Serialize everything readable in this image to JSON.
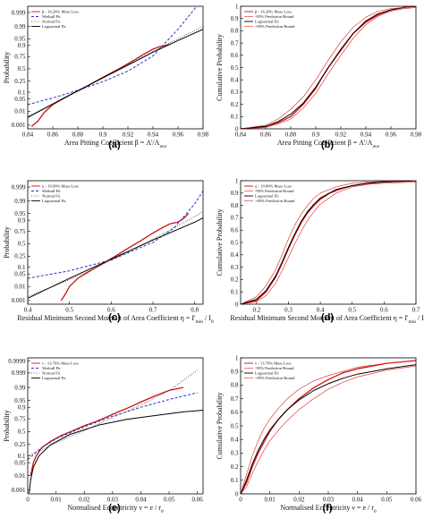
{
  "colors": {
    "data": "#cc1111",
    "weibull": "#2233cc",
    "normal": "#444444",
    "lognormal": "#000000",
    "bound": "#e02020",
    "cdf_main": "#222222"
  },
  "chart_data": [
    {
      "id": "a",
      "type": "line",
      "panel_label": "(a)",
      "xlabel": "Area Pitting Coefficient β = A'/A",
      "xlabel_sub": "ave",
      "ylabel": "Probability",
      "xlim": [
        0.84,
        0.98
      ],
      "xticks": [
        "0.84",
        "0.86",
        "0.88",
        "0.9",
        "0.92",
        "0.94",
        "0.96",
        "0.98"
      ],
      "yticks": [
        "0.001",
        "0.01",
        "0.05",
        "0.1",
        "0.25",
        "0.5",
        "0.75",
        "0.9",
        "0.95",
        "0.99",
        "0.999"
      ],
      "ylim_prob": [
        0.0005,
        0.9997
      ],
      "legend_position": "top-left",
      "legend": [
        "β - 16.26% Mass Loss",
        "Weibull Fit",
        "Normal Fit",
        "Lognormal Fit"
      ],
      "series": [
        {
          "name": "β - 16.26% Mass Loss",
          "style": "data",
          "x": [
            0.843,
            0.848,
            0.853,
            0.86,
            0.868,
            0.876,
            0.884,
            0.892,
            0.9,
            0.908,
            0.916,
            0.924,
            0.932,
            0.94,
            0.946,
            0.95,
            0.953
          ],
          "y": [
            0.0008,
            0.002,
            0.008,
            0.025,
            0.05,
            0.09,
            0.14,
            0.22,
            0.32,
            0.43,
            0.55,
            0.67,
            0.78,
            0.86,
            0.89,
            0.9,
            0.91
          ]
        },
        {
          "name": "Weibull Fit",
          "style": "weibull",
          "x": [
            0.84,
            0.86,
            0.88,
            0.9,
            0.92,
            0.94,
            0.96,
            0.975
          ],
          "y": [
            0.025,
            0.055,
            0.12,
            0.24,
            0.45,
            0.76,
            0.985,
            0.9997
          ]
        },
        {
          "name": "Normal Fit",
          "style": "normal",
          "x": [
            0.84,
            0.86,
            0.88,
            0.9,
            0.92,
            0.94,
            0.96,
            0.98
          ],
          "y": [
            0.0035,
            0.025,
            0.11,
            0.31,
            0.59,
            0.83,
            0.95,
            0.99
          ]
        },
        {
          "name": "Lognormal Fit",
          "style": "lognormal",
          "x": [
            0.84,
            0.86,
            0.88,
            0.9,
            0.92,
            0.94,
            0.96,
            0.98
          ],
          "y": [
            0.004,
            0.027,
            0.115,
            0.31,
            0.58,
            0.82,
            0.94,
            0.985
          ]
        }
      ]
    },
    {
      "id": "b",
      "type": "line",
      "panel_label": "(b)",
      "xlabel": "Area Pitting Coefficient β = A'/A",
      "xlabel_sub": "ave",
      "ylabel": "Cumulative Probability",
      "xlim": [
        0.84,
        0.98
      ],
      "xticks": [
        "0.84",
        "0.86",
        "0.88",
        "0.9",
        "0.92",
        "0.94",
        "0.96",
        "0.98"
      ],
      "ylim": [
        0,
        1
      ],
      "yticks": [
        "0",
        "0.1",
        "0.2",
        "0.3",
        "0.4",
        "0.5",
        "0.6",
        "0.7",
        "0.8",
        "0.9",
        "1"
      ],
      "legend_position": "top-left",
      "legend": [
        "β - 16.26% Mass Loss",
        "-95% Prediction Bound",
        "Lognormal Fit",
        "+95% Prediction Bound"
      ],
      "series": [
        {
          "name": "β - 16.26% Mass Loss",
          "style": "data",
          "x": [
            0.84,
            0.86,
            0.87,
            0.88,
            0.89,
            0.9,
            0.905,
            0.91,
            0.92,
            0.93,
            0.94,
            0.95,
            0.96,
            0.97,
            0.98
          ],
          "y": [
            0,
            0.02,
            0.05,
            0.1,
            0.2,
            0.33,
            0.42,
            0.5,
            0.64,
            0.78,
            0.87,
            0.93,
            0.97,
            0.99,
            1
          ]
        },
        {
          "name": "-95% Prediction Bound",
          "style": "bound",
          "x": [
            0.84,
            0.86,
            0.87,
            0.88,
            0.89,
            0.9,
            0.91,
            0.92,
            0.93,
            0.94,
            0.95,
            0.96,
            0.97,
            0.98
          ],
          "y": [
            0,
            0.01,
            0.04,
            0.08,
            0.17,
            0.29,
            0.45,
            0.6,
            0.74,
            0.85,
            0.92,
            0.96,
            0.98,
            0.99
          ]
        },
        {
          "name": "Lognormal Fit",
          "style": "lognormal",
          "x": [
            0.84,
            0.86,
            0.87,
            0.88,
            0.89,
            0.9,
            0.91,
            0.92,
            0.93,
            0.94,
            0.95,
            0.96,
            0.97,
            0.98
          ],
          "y": [
            0,
            0.02,
            0.06,
            0.12,
            0.21,
            0.34,
            0.5,
            0.65,
            0.78,
            0.88,
            0.94,
            0.97,
            0.99,
            1
          ]
        },
        {
          "name": "+95% Prediction Bound",
          "style": "bound",
          "x": [
            0.84,
            0.86,
            0.87,
            0.88,
            0.89,
            0.9,
            0.91,
            0.92,
            0.93,
            0.94,
            0.95,
            0.96,
            0.97,
            0.98
          ],
          "y": [
            0,
            0.03,
            0.08,
            0.16,
            0.26,
            0.4,
            0.56,
            0.71,
            0.83,
            0.91,
            0.96,
            0.98,
            0.99,
            1
          ]
        }
      ]
    },
    {
      "id": "c",
      "type": "line",
      "panel_label": "(c)",
      "xlabel": "Residual Minimum Second Moment of Area Coefficient η = I'",
      "xlabel_sub": "min",
      "xlabel_tail": " / I",
      "xlabel_sub2": "0",
      "ylabel": "Probability",
      "xlim": [
        0.4,
        0.82
      ],
      "xticks": [
        "0.4",
        "0.5",
        "0.6",
        "0.7",
        "0.8"
      ],
      "yticks": [
        "0.001",
        "0.01",
        "0.05",
        "0.1",
        "0.25",
        "0.5",
        "0.75",
        "0.9",
        "0.95",
        "0.99",
        "0.999"
      ],
      "ylim_prob": [
        0.0005,
        0.9997
      ],
      "legend_position": "top-left",
      "legend": [
        "η - 19.09% Mass Loss",
        "Weibull Fit",
        "Normal Fit",
        "Lognormal Fit"
      ],
      "series": [
        {
          "name": "η - 19.09% Mass Loss",
          "style": "data",
          "x": [
            0.48,
            0.49,
            0.5,
            0.52,
            0.55,
            0.58,
            0.61,
            0.64,
            0.67,
            0.7,
            0.72,
            0.74,
            0.76,
            0.775,
            0.785
          ],
          "y": [
            0.001,
            0.003,
            0.01,
            0.03,
            0.07,
            0.14,
            0.25,
            0.4,
            0.56,
            0.72,
            0.8,
            0.86,
            0.88,
            0.92,
            0.95
          ]
        },
        {
          "name": "Weibull Fit",
          "style": "weibull",
          "x": [
            0.4,
            0.5,
            0.6,
            0.7,
            0.75,
            0.8,
            0.82
          ],
          "y": [
            0.03,
            0.07,
            0.19,
            0.53,
            0.8,
            0.985,
            0.998
          ]
        },
        {
          "name": "Normal Fit",
          "style": "normal",
          "x": [
            0.4,
            0.5,
            0.6,
            0.7,
            0.8,
            0.82
          ],
          "y": [
            0.002,
            0.025,
            0.18,
            0.6,
            0.93,
            0.96
          ]
        },
        {
          "name": "Lognormal Fit",
          "style": "lognormal",
          "x": [
            0.4,
            0.5,
            0.6,
            0.7,
            0.8,
            0.82
          ],
          "y": [
            0.0015,
            0.03,
            0.2,
            0.58,
            0.88,
            0.92
          ]
        }
      ]
    },
    {
      "id": "d",
      "type": "line",
      "panel_label": "(d)",
      "xlabel": "Residual Minimum Second Moment of Area Coefficient η = I'",
      "xlabel_sub": "min",
      "xlabel_tail": " / I",
      "xlabel_sub2": "0",
      "ylabel": "Cumulative Probability",
      "xlim": [
        0.15,
        0.7
      ],
      "xticks": [
        "0.2",
        "0.3",
        "0.4",
        "0.5",
        "0.6",
        "0.7"
      ],
      "ylim": [
        0,
        1
      ],
      "yticks": [
        "0",
        "0.1",
        "0.2",
        "0.3",
        "0.4",
        "0.5",
        "0.6",
        "0.7",
        "0.8",
        "0.9",
        "1"
      ],
      "legend_position": "top-left",
      "legend": [
        "η - 19.09% Mass Loss",
        "-95% Prediction Bound",
        "Lognormal Fit",
        "+95% Prediction Bound"
      ],
      "series": [
        {
          "name": "η - 19.09% Mass Loss",
          "style": "data",
          "x": [
            0.15,
            0.2,
            0.23,
            0.26,
            0.28,
            0.3,
            0.32,
            0.34,
            0.36,
            0.38,
            0.4,
            0.43,
            0.46,
            0.5,
            0.55,
            0.6,
            0.65,
            0.7
          ],
          "y": [
            0,
            0.03,
            0.1,
            0.22,
            0.33,
            0.45,
            0.56,
            0.66,
            0.74,
            0.8,
            0.85,
            0.9,
            0.93,
            0.96,
            0.98,
            0.99,
            0.995,
            1
          ]
        },
        {
          "name": "-95% Prediction Bound",
          "style": "bound",
          "x": [
            0.15,
            0.2,
            0.23,
            0.26,
            0.28,
            0.3,
            0.32,
            0.34,
            0.36,
            0.38,
            0.4,
            0.45,
            0.5,
            0.55,
            0.6,
            0.7
          ],
          "y": [
            0,
            0.02,
            0.07,
            0.17,
            0.27,
            0.38,
            0.49,
            0.59,
            0.68,
            0.75,
            0.81,
            0.9,
            0.95,
            0.97,
            0.98,
            0.99
          ]
        },
        {
          "name": "Lognormal Fit",
          "style": "lognormal",
          "x": [
            0.15,
            0.2,
            0.23,
            0.26,
            0.28,
            0.3,
            0.32,
            0.34,
            0.36,
            0.38,
            0.4,
            0.45,
            0.5,
            0.55,
            0.6,
            0.7
          ],
          "y": [
            0,
            0.04,
            0.11,
            0.23,
            0.34,
            0.46,
            0.57,
            0.67,
            0.75,
            0.81,
            0.86,
            0.93,
            0.96,
            0.98,
            0.99,
            1
          ]
        },
        {
          "name": "+95% Prediction Bound",
          "style": "bound",
          "x": [
            0.15,
            0.2,
            0.23,
            0.26,
            0.28,
            0.3,
            0.32,
            0.34,
            0.36,
            0.38,
            0.4,
            0.45,
            0.5,
            0.55,
            0.6,
            0.7
          ],
          "y": [
            0,
            0.06,
            0.15,
            0.28,
            0.4,
            0.53,
            0.64,
            0.73,
            0.8,
            0.86,
            0.9,
            0.95,
            0.98,
            0.99,
            0.995,
            1
          ]
        }
      ]
    },
    {
      "id": "e",
      "type": "line",
      "panel_label": "(e)",
      "xlabel": "Normalised Eccentricity ν = e / r",
      "xlabel_sub": "0",
      "ylabel": "Probability",
      "xlim": [
        0,
        0.062
      ],
      "xticks": [
        "0",
        "0.01",
        "0.02",
        "0.03",
        "0.04",
        "0.05",
        "0.06"
      ],
      "yticks": [
        "0.001",
        "0.01",
        "0.05",
        "0.1",
        "0.25",
        "0.5",
        "0.75",
        "0.9",
        "0.95",
        "0.99",
        "0.999",
        "0.9999"
      ],
      "ylim_prob": [
        0.0005,
        0.99995
      ],
      "legend_position": "top-left",
      "legend": [
        "ν - 13.76% Mass Loss",
        "Weibull Fit",
        "Normal Fit",
        "Lognormal Fit"
      ],
      "series": [
        {
          "name": "ν - 13.76% Mass Loss",
          "style": "data",
          "x": [
            0.001,
            0.002,
            0.003,
            0.005,
            0.008,
            0.012,
            0.016,
            0.02,
            0.024,
            0.028,
            0.032,
            0.036,
            0.04,
            0.045,
            0.05,
            0.055
          ],
          "y": [
            0.01,
            0.05,
            0.1,
            0.2,
            0.3,
            0.42,
            0.52,
            0.62,
            0.7,
            0.78,
            0.85,
            0.9,
            0.94,
            0.97,
            0.985,
            0.99
          ]
        },
        {
          "name": "Weibull Fit",
          "style": "weibull",
          "x": [
            0,
            0.005,
            0.01,
            0.02,
            0.03,
            0.04,
            0.05,
            0.06
          ],
          "y": [
            0.07,
            0.2,
            0.35,
            0.6,
            0.79,
            0.9,
            0.955,
            0.98
          ]
        },
        {
          "name": "Normal Fit",
          "style": "normal",
          "x": [
            0,
            0.01,
            0.02,
            0.03,
            0.04,
            0.05,
            0.06
          ],
          "y": [
            0.1,
            0.27,
            0.52,
            0.77,
            0.92,
            0.985,
            0.9994
          ]
        },
        {
          "name": "Lognormal Fit",
          "style": "lognormal",
          "x": [
            0.0005,
            0.001,
            0.002,
            0.004,
            0.008,
            0.015,
            0.025,
            0.035,
            0.045,
            0.055,
            0.062
          ],
          "y": [
            0.0006,
            0.005,
            0.03,
            0.1,
            0.24,
            0.44,
            0.63,
            0.74,
            0.8,
            0.85,
            0.87
          ]
        }
      ]
    },
    {
      "id": "f",
      "type": "line",
      "panel_label": "(f)",
      "xlabel": "Normalised Eccentricity ν = e / r",
      "xlabel_sub": "0",
      "ylabel": "Cumulative Probability",
      "xlim": [
        0,
        0.06
      ],
      "xticks": [
        "0",
        "0.01",
        "0.02",
        "0.03",
        "0.04",
        "0.05",
        "0.06"
      ],
      "ylim": [
        0,
        1
      ],
      "yticks": [
        "0",
        "0.1",
        "0.2",
        "0.3",
        "0.4",
        "0.5",
        "0.6",
        "0.7",
        "0.8",
        "0.9",
        "1"
      ],
      "legend_position": "top-left",
      "legend": [
        "ν - 13.76% Mass Loss",
        "-95% Prediction Bound",
        "Lognormal Fit",
        "+95% Prediction Bound"
      ],
      "series": [
        {
          "name": "ν - 13.76% Mass Loss",
          "style": "data",
          "x": [
            0,
            0.002,
            0.004,
            0.006,
            0.008,
            0.01,
            0.013,
            0.016,
            0.02,
            0.025,
            0.03,
            0.035,
            0.04,
            0.05,
            0.06
          ],
          "y": [
            0,
            0.08,
            0.2,
            0.3,
            0.38,
            0.46,
            0.55,
            0.62,
            0.7,
            0.78,
            0.84,
            0.89,
            0.92,
            0.96,
            0.98
          ]
        },
        {
          "name": "-95% Prediction Bound",
          "style": "bound",
          "x": [
            0,
            0.002,
            0.004,
            0.006,
            0.008,
            0.01,
            0.013,
            0.016,
            0.02,
            0.025,
            0.03,
            0.035,
            0.04,
            0.05,
            0.06
          ],
          "y": [
            0,
            0.05,
            0.15,
            0.24,
            0.32,
            0.39,
            0.47,
            0.54,
            0.62,
            0.7,
            0.77,
            0.82,
            0.86,
            0.91,
            0.94
          ]
        },
        {
          "name": "Lognormal Fit",
          "style": "lognormal",
          "x": [
            0,
            0.002,
            0.004,
            0.006,
            0.008,
            0.01,
            0.013,
            0.016,
            0.02,
            0.025,
            0.03,
            0.035,
            0.04,
            0.05,
            0.06
          ],
          "y": [
            0,
            0.1,
            0.22,
            0.32,
            0.4,
            0.47,
            0.55,
            0.62,
            0.69,
            0.76,
            0.81,
            0.85,
            0.88,
            0.92,
            0.95
          ]
        },
        {
          "name": "+95% Prediction Bound",
          "style": "bound",
          "x": [
            0,
            0.002,
            0.004,
            0.006,
            0.008,
            0.01,
            0.013,
            0.016,
            0.02,
            0.025,
            0.03,
            0.035,
            0.04,
            0.05,
            0.06
          ],
          "y": [
            0,
            0.14,
            0.28,
            0.39,
            0.48,
            0.55,
            0.63,
            0.7,
            0.77,
            0.83,
            0.87,
            0.9,
            0.93,
            0.96,
            0.98
          ]
        }
      ]
    }
  ]
}
